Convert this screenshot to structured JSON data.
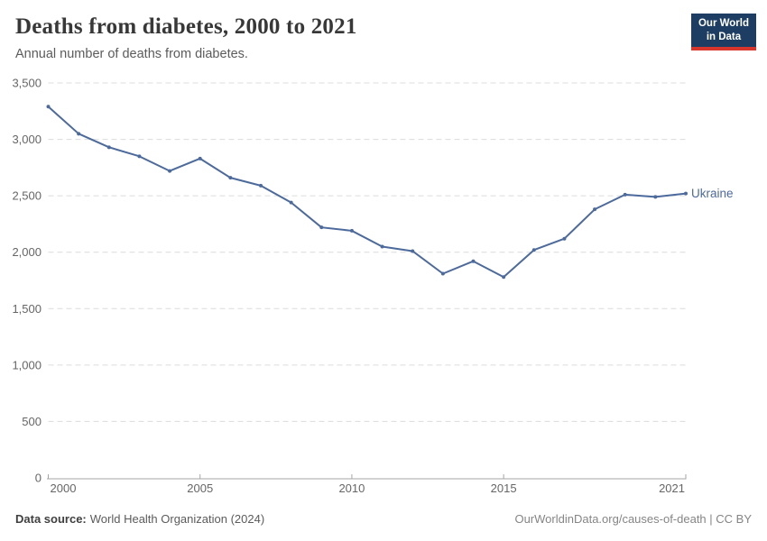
{
  "header": {
    "title": "Deaths from diabetes, 2000 to 2021",
    "subtitle": "Annual number of deaths from diabetes.",
    "logo": {
      "line1": "Our World",
      "line2": "in Data",
      "background_color": "#1d3d63",
      "accent_color": "#d8352c"
    }
  },
  "chart_data": {
    "type": "line",
    "title": "Deaths from diabetes, 2000 to 2021",
    "subtitle": "Annual number of deaths from diabetes.",
    "xlabel": "",
    "ylabel": "",
    "xlim": [
      2000,
      2021
    ],
    "ylim": [
      0,
      3500
    ],
    "xticks": [
      2000,
      2005,
      2010,
      2015,
      2021
    ],
    "yticks": [
      0,
      500,
      1000,
      1500,
      2000,
      2500,
      3000,
      3500
    ],
    "grid": "horizontal-dashed",
    "legend_position": "end-of-line-label",
    "series": [
      {
        "name": "Ukraine",
        "color": "#4c6a9c",
        "x": [
          2000,
          2001,
          2002,
          2003,
          2004,
          2005,
          2006,
          2007,
          2008,
          2009,
          2010,
          2011,
          2012,
          2013,
          2014,
          2015,
          2016,
          2017,
          2018,
          2019,
          2020,
          2021
        ],
        "values": [
          3290,
          3050,
          2930,
          2850,
          2720,
          2830,
          2660,
          2590,
          2440,
          2220,
          2190,
          2050,
          2010,
          1810,
          1920,
          1780,
          2020,
          2120,
          2380,
          2510,
          2490,
          2520
        ]
      }
    ],
    "colors": {
      "gridline": "#dcdcdc",
      "axis": "#a6a6a6",
      "tick_label": "#666666"
    }
  },
  "footer": {
    "source_label": "Data source:",
    "source_text": "World Health Organization (2024)",
    "link_text": "OurWorldinData.org/causes-of-death | CC BY"
  }
}
